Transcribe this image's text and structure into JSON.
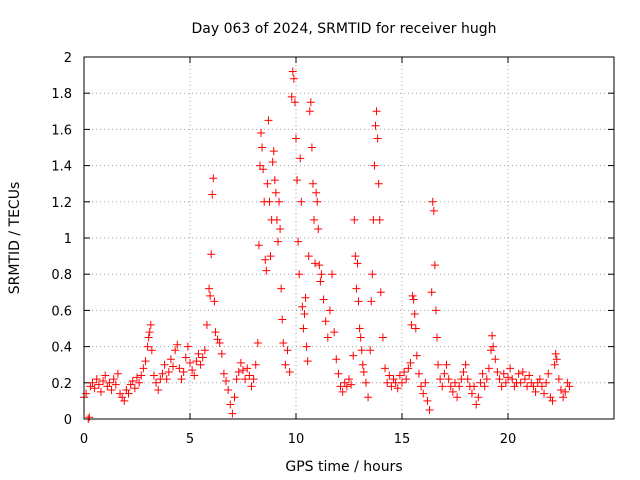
{
  "chart_data": {
    "type": "scatter",
    "title": "Day 063 of 2024, SRMTID for receiver hugh",
    "xlabel": "GPS time / hours",
    "ylabel": "SRMTID / TECUs",
    "xlim": [
      0,
      25
    ],
    "ylim": [
      0,
      2
    ],
    "xticks": [
      0,
      5,
      10,
      15,
      20
    ],
    "yticks": [
      0,
      0.2,
      0.4,
      0.6,
      0.8,
      1,
      1.2,
      1.4,
      1.6,
      1.8,
      2
    ],
    "xtick_labels": [
      "0",
      "5",
      "10",
      "15",
      "20"
    ],
    "ytick_labels": [
      "0",
      "0.2",
      "0.4",
      "0.6",
      "0.8",
      "1",
      "1.2",
      "1.4",
      "1.6",
      "1.8",
      "2"
    ],
    "grid": true,
    "marker": "plus",
    "color": "#ff0000",
    "series": [
      {
        "name": "SRMTID",
        "points": [
          [
            0.0,
            0.12
          ],
          [
            0.1,
            0.14
          ],
          [
            0.2,
            0.0
          ],
          [
            0.25,
            0.01
          ],
          [
            0.3,
            0.18
          ],
          [
            0.4,
            0.2
          ],
          [
            0.5,
            0.17
          ],
          [
            0.6,
            0.22
          ],
          [
            0.7,
            0.19
          ],
          [
            0.8,
            0.15
          ],
          [
            0.9,
            0.21
          ],
          [
            1.0,
            0.24
          ],
          [
            1.1,
            0.18
          ],
          [
            1.2,
            0.2
          ],
          [
            1.3,
            0.16
          ],
          [
            1.4,
            0.22
          ],
          [
            1.5,
            0.19
          ],
          [
            1.6,
            0.25
          ],
          [
            1.7,
            0.14
          ],
          [
            1.8,
            0.12
          ],
          [
            1.9,
            0.1
          ],
          [
            2.0,
            0.16
          ],
          [
            2.1,
            0.14
          ],
          [
            2.2,
            0.19
          ],
          [
            2.3,
            0.21
          ],
          [
            2.4,
            0.17
          ],
          [
            2.5,
            0.23
          ],
          [
            2.6,
            0.2
          ],
          [
            2.7,
            0.24
          ],
          [
            2.8,
            0.28
          ],
          [
            2.9,
            0.32
          ],
          [
            3.0,
            0.4
          ],
          [
            3.05,
            0.45
          ],
          [
            3.1,
            0.48
          ],
          [
            3.15,
            0.52
          ],
          [
            3.2,
            0.38
          ],
          [
            3.3,
            0.24
          ],
          [
            3.4,
            0.2
          ],
          [
            3.5,
            0.16
          ],
          [
            3.6,
            0.22
          ],
          [
            3.7,
            0.25
          ],
          [
            3.8,
            0.3
          ],
          [
            3.9,
            0.22
          ],
          [
            4.0,
            0.26
          ],
          [
            4.1,
            0.33
          ],
          [
            4.2,
            0.29
          ],
          [
            4.3,
            0.38
          ],
          [
            4.4,
            0.41
          ],
          [
            4.5,
            0.28
          ],
          [
            4.6,
            0.22
          ],
          [
            4.7,
            0.26
          ],
          [
            4.8,
            0.34
          ],
          [
            4.9,
            0.4
          ],
          [
            5.0,
            0.31
          ],
          [
            5.1,
            0.27
          ],
          [
            5.2,
            0.24
          ],
          [
            5.3,
            0.32
          ],
          [
            5.4,
            0.36
          ],
          [
            5.5,
            0.3
          ],
          [
            5.6,
            0.34
          ],
          [
            5.7,
            0.38
          ],
          [
            5.8,
            0.52
          ],
          [
            5.9,
            0.72
          ],
          [
            5.95,
            0.68
          ],
          [
            6.0,
            0.91
          ],
          [
            6.05,
            1.24
          ],
          [
            6.1,
            1.33
          ],
          [
            6.15,
            0.65
          ],
          [
            6.2,
            0.48
          ],
          [
            6.3,
            0.44
          ],
          [
            6.4,
            0.42
          ],
          [
            6.5,
            0.36
          ],
          [
            6.6,
            0.25
          ],
          [
            6.7,
            0.21
          ],
          [
            6.8,
            0.16
          ],
          [
            6.9,
            0.08
          ],
          [
            7.0,
            0.03
          ],
          [
            7.1,
            0.12
          ],
          [
            7.2,
            0.22
          ],
          [
            7.3,
            0.26
          ],
          [
            7.4,
            0.31
          ],
          [
            7.5,
            0.27
          ],
          [
            7.6,
            0.22
          ],
          [
            7.7,
            0.28
          ],
          [
            7.8,
            0.24
          ],
          [
            7.9,
            0.18
          ],
          [
            8.0,
            0.22
          ],
          [
            8.1,
            0.3
          ],
          [
            8.2,
            0.42
          ],
          [
            8.25,
            0.96
          ],
          [
            8.3,
            1.4
          ],
          [
            8.35,
            1.58
          ],
          [
            8.4,
            1.5
          ],
          [
            8.45,
            1.38
          ],
          [
            8.5,
            1.2
          ],
          [
            8.55,
            0.88
          ],
          [
            8.6,
            0.82
          ],
          [
            8.65,
            1.3
          ],
          [
            8.7,
            1.65
          ],
          [
            8.75,
            1.2
          ],
          [
            8.8,
            0.9
          ],
          [
            8.85,
            1.1
          ],
          [
            8.9,
            1.42
          ],
          [
            8.95,
            1.48
          ],
          [
            9.0,
            1.32
          ],
          [
            9.05,
            1.25
          ],
          [
            9.1,
            1.1
          ],
          [
            9.15,
            0.98
          ],
          [
            9.2,
            1.2
          ],
          [
            9.25,
            1.05
          ],
          [
            9.3,
            0.72
          ],
          [
            9.35,
            0.55
          ],
          [
            9.4,
            0.42
          ],
          [
            9.5,
            0.3
          ],
          [
            9.6,
            0.38
          ],
          [
            9.7,
            0.26
          ],
          [
            9.8,
            1.78
          ],
          [
            9.85,
            1.92
          ],
          [
            9.9,
            1.88
          ],
          [
            9.95,
            1.75
          ],
          [
            10.0,
            1.55
          ],
          [
            10.05,
            1.32
          ],
          [
            10.1,
            0.98
          ],
          [
            10.15,
            0.8
          ],
          [
            10.2,
            1.44
          ],
          [
            10.25,
            1.2
          ],
          [
            10.3,
            0.62
          ],
          [
            10.35,
            0.5
          ],
          [
            10.4,
            0.58
          ],
          [
            10.45,
            0.67
          ],
          [
            10.5,
            0.4
          ],
          [
            10.55,
            0.32
          ],
          [
            10.6,
            0.9
          ],
          [
            10.65,
            1.7
          ],
          [
            10.7,
            1.75
          ],
          [
            10.75,
            1.5
          ],
          [
            10.8,
            1.3
          ],
          [
            10.85,
            1.1
          ],
          [
            10.9,
            0.86
          ],
          [
            10.95,
            1.25
          ],
          [
            11.0,
            1.2
          ],
          [
            11.05,
            1.05
          ],
          [
            11.1,
            0.85
          ],
          [
            11.15,
            0.76
          ],
          [
            11.2,
            0.8
          ],
          [
            11.3,
            0.66
          ],
          [
            11.4,
            0.54
          ],
          [
            11.5,
            0.45
          ],
          [
            11.6,
            0.6
          ],
          [
            11.7,
            0.8
          ],
          [
            11.8,
            0.48
          ],
          [
            11.9,
            0.33
          ],
          [
            12.0,
            0.25
          ],
          [
            12.1,
            0.18
          ],
          [
            12.2,
            0.15
          ],
          [
            12.3,
            0.2
          ],
          [
            12.4,
            0.18
          ],
          [
            12.5,
            0.22
          ],
          [
            12.6,
            0.19
          ],
          [
            12.7,
            0.35
          ],
          [
            12.75,
            1.1
          ],
          [
            12.8,
            0.9
          ],
          [
            12.85,
            0.72
          ],
          [
            12.9,
            0.86
          ],
          [
            12.95,
            0.65
          ],
          [
            13.0,
            0.5
          ],
          [
            13.05,
            0.45
          ],
          [
            13.1,
            0.38
          ],
          [
            13.15,
            0.3
          ],
          [
            13.2,
            0.26
          ],
          [
            13.3,
            0.2
          ],
          [
            13.4,
            0.12
          ],
          [
            13.5,
            0.38
          ],
          [
            13.55,
            0.65
          ],
          [
            13.6,
            0.8
          ],
          [
            13.65,
            1.1
          ],
          [
            13.7,
            1.4
          ],
          [
            13.75,
            1.62
          ],
          [
            13.8,
            1.7
          ],
          [
            13.85,
            1.55
          ],
          [
            13.9,
            1.3
          ],
          [
            13.95,
            1.1
          ],
          [
            14.0,
            0.7
          ],
          [
            14.1,
            0.45
          ],
          [
            14.2,
            0.28
          ],
          [
            14.3,
            0.2
          ],
          [
            14.4,
            0.24
          ],
          [
            14.5,
            0.18
          ],
          [
            14.6,
            0.22
          ],
          [
            14.7,
            0.2
          ],
          [
            14.8,
            0.17
          ],
          [
            14.9,
            0.24
          ],
          [
            15.0,
            0.2
          ],
          [
            15.1,
            0.26
          ],
          [
            15.2,
            0.22
          ],
          [
            15.3,
            0.28
          ],
          [
            15.4,
            0.31
          ],
          [
            15.45,
            0.52
          ],
          [
            15.5,
            0.68
          ],
          [
            15.55,
            0.66
          ],
          [
            15.6,
            0.58
          ],
          [
            15.65,
            0.5
          ],
          [
            15.7,
            0.35
          ],
          [
            15.8,
            0.25
          ],
          [
            15.9,
            0.18
          ],
          [
            16.0,
            0.14
          ],
          [
            16.1,
            0.2
          ],
          [
            16.2,
            0.1
          ],
          [
            16.3,
            0.05
          ],
          [
            16.4,
            0.7
          ],
          [
            16.45,
            1.2
          ],
          [
            16.5,
            1.15
          ],
          [
            16.55,
            0.85
          ],
          [
            16.6,
            0.6
          ],
          [
            16.65,
            0.45
          ],
          [
            16.7,
            0.3
          ],
          [
            16.8,
            0.22
          ],
          [
            16.9,
            0.18
          ],
          [
            17.0,
            0.25
          ],
          [
            17.1,
            0.3
          ],
          [
            17.2,
            0.22
          ],
          [
            17.3,
            0.18
          ],
          [
            17.4,
            0.15
          ],
          [
            17.5,
            0.2
          ],
          [
            17.6,
            0.12
          ],
          [
            17.7,
            0.18
          ],
          [
            17.8,
            0.22
          ],
          [
            17.9,
            0.26
          ],
          [
            18.0,
            0.3
          ],
          [
            18.1,
            0.22
          ],
          [
            18.2,
            0.18
          ],
          [
            18.3,
            0.14
          ],
          [
            18.4,
            0.18
          ],
          [
            18.5,
            0.08
          ],
          [
            18.6,
            0.12
          ],
          [
            18.7,
            0.2
          ],
          [
            18.8,
            0.25
          ],
          [
            18.9,
            0.18
          ],
          [
            19.0,
            0.22
          ],
          [
            19.1,
            0.28
          ],
          [
            19.2,
            0.38
          ],
          [
            19.25,
            0.46
          ],
          [
            19.3,
            0.4
          ],
          [
            19.4,
            0.33
          ],
          [
            19.5,
            0.26
          ],
          [
            19.6,
            0.22
          ],
          [
            19.7,
            0.18
          ],
          [
            19.8,
            0.25
          ],
          [
            19.9,
            0.2
          ],
          [
            20.0,
            0.23
          ],
          [
            20.1,
            0.28
          ],
          [
            20.2,
            0.22
          ],
          [
            20.3,
            0.18
          ],
          [
            20.4,
            0.2
          ],
          [
            20.5,
            0.25
          ],
          [
            20.6,
            0.2
          ],
          [
            20.7,
            0.26
          ],
          [
            20.8,
            0.22
          ],
          [
            20.9,
            0.18
          ],
          [
            21.0,
            0.24
          ],
          [
            21.1,
            0.2
          ],
          [
            21.2,
            0.18
          ],
          [
            21.3,
            0.15
          ],
          [
            21.4,
            0.2
          ],
          [
            21.5,
            0.22
          ],
          [
            21.6,
            0.18
          ],
          [
            21.7,
            0.14
          ],
          [
            21.8,
            0.2
          ],
          [
            21.9,
            0.25
          ],
          [
            22.0,
            0.12
          ],
          [
            22.1,
            0.1
          ],
          [
            22.2,
            0.3
          ],
          [
            22.25,
            0.36
          ],
          [
            22.3,
            0.33
          ],
          [
            22.4,
            0.22
          ],
          [
            22.5,
            0.16
          ],
          [
            22.6,
            0.12
          ],
          [
            22.7,
            0.15
          ],
          [
            22.8,
            0.2
          ],
          [
            22.9,
            0.18
          ]
        ]
      }
    ]
  }
}
